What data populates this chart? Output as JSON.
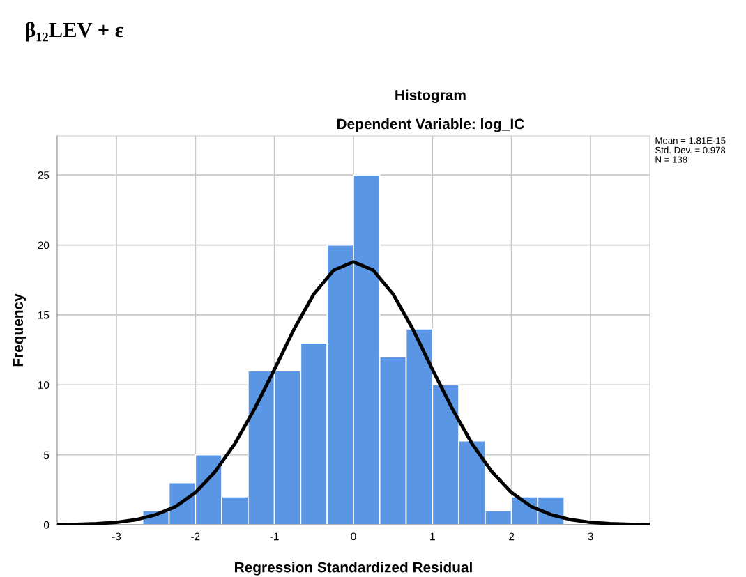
{
  "chart_data": {
    "type": "histogram",
    "title": "Histogram",
    "subtitle": "Dependent Variable: log_IC",
    "xlabel": "Regression Standardized Residual",
    "ylabel": "Frequency",
    "series": [
      {
        "color": "#5a96e3",
        "bins": [
          -2.667,
          -2.333,
          -2,
          -1.667,
          -1.333,
          -1,
          -0.667,
          -0.333,
          0,
          0.333,
          0.667,
          1,
          1.333,
          1.667,
          2,
          2.333,
          2.667
        ],
        "values": [
          1,
          3,
          5,
          2,
          11,
          11,
          13,
          20,
          25,
          12,
          14,
          10,
          6,
          1,
          2,
          2
        ]
      },
      {
        "type": "line",
        "color": "#000000",
        "x": [
          -3.75,
          -3.5,
          -3.25,
          -3,
          -2.75,
          -2.5,
          -2.25,
          -2,
          -1.75,
          -1.5,
          -1.25,
          -1,
          -0.75,
          -0.5,
          -0.25,
          0,
          0.25,
          0.5,
          0.75,
          1,
          1.25,
          1.5,
          1.75,
          2,
          2.25,
          2.5,
          2.75,
          3,
          3.25,
          3.5,
          3.75
        ],
        "values": [
          0.01,
          0.03,
          0.08,
          0.17,
          0.36,
          0.72,
          1.3,
          2.3,
          3.8,
          5.8,
          8.3,
          11.1,
          14,
          16.5,
          18.2,
          18.8,
          18.2,
          16.5,
          14,
          11.1,
          8.3,
          5.8,
          3.8,
          2.3,
          1.3,
          0.72,
          0.36,
          0.17,
          0.08,
          0.03,
          0.01
        ]
      }
    ],
    "xlim": [
      -3.75,
      3.75
    ],
    "ylim": [
      0,
      27.8
    ],
    "xticks": [
      -3,
      -2,
      -1,
      0,
      1,
      2,
      3
    ],
    "yticks": [
      0,
      5,
      10,
      15,
      20,
      25
    ],
    "grid": true,
    "legend": false,
    "annotations": [
      "Mean = 1.81E-15",
      "Std. Dev. = 0.978",
      "N = 138",
      "β₁₂LEV + ε"
    ]
  }
}
